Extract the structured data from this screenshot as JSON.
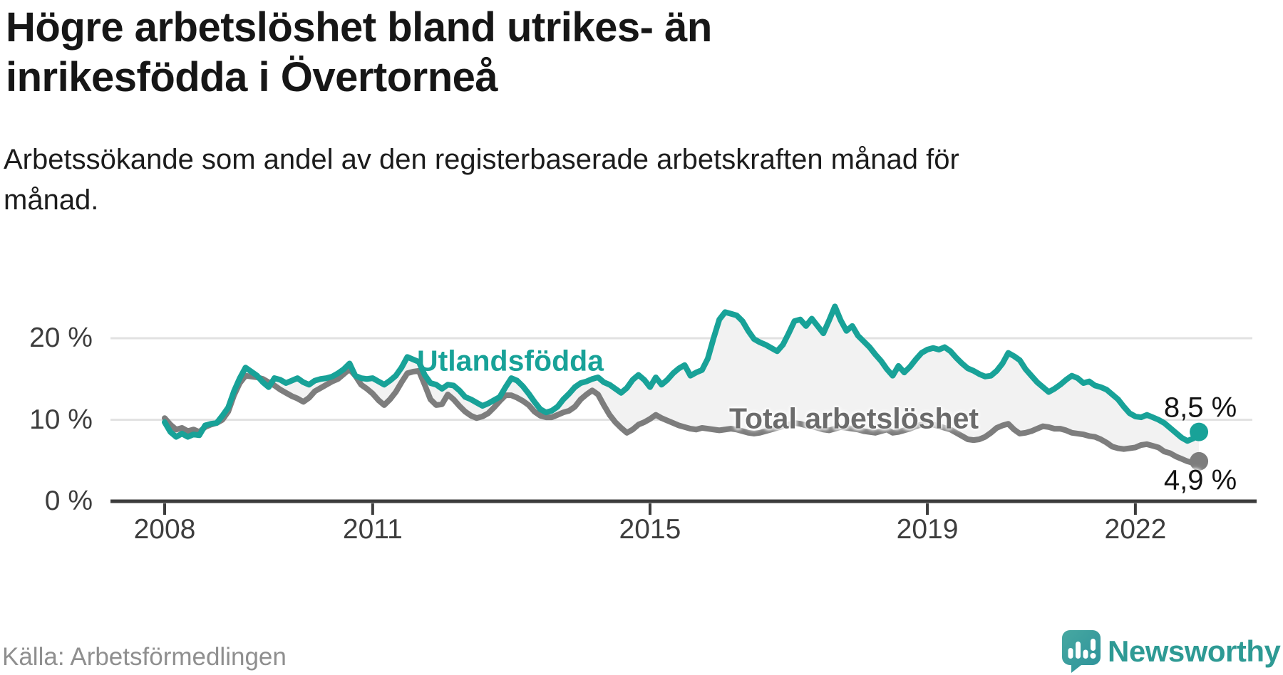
{
  "title_lines": [
    "Högre arbetslöshet bland utrikes- än",
    "inrikesfödda i Övertorneå"
  ],
  "subtitle_lines": [
    "Arbetssökande som andel av den registerbaserade arbetskraften månad för",
    "månad."
  ],
  "source": "Källa: Arbetsförmedlingen",
  "branding": {
    "name": "Newsworthy",
    "logo_icon": "speech-bubble-bar-chart",
    "color": "#2e9a94"
  },
  "chart_data": {
    "type": "line",
    "unit": "%",
    "frequency": "monthly",
    "start": "2008-01",
    "end": "2022-12",
    "x_ticks": [
      2008,
      2011,
      2015,
      2019,
      2022
    ],
    "y_ticks": [
      {
        "value": 0,
        "label": "0 %"
      },
      {
        "value": 10,
        "label": "10 %"
      },
      {
        "value": 20,
        "label": "20 %"
      }
    ],
    "ylim": [
      0,
      24
    ],
    "grid": "horizontal",
    "area_fill": "#f2f2f2",
    "series": [
      {
        "name": "Utlandsfödda",
        "color": "#18a298",
        "end_label": "8,5 %",
        "end_value": 8.5,
        "values": [
          9.7,
          8.5,
          7.9,
          8.3,
          7.9,
          8.2,
          8.1,
          9.3,
          9.5,
          9.6,
          10.5,
          11.5,
          13.5,
          15.1,
          16.4,
          15.9,
          15.4,
          14.6,
          14.0,
          15.1,
          14.9,
          14.5,
          14.8,
          15.1,
          14.6,
          14.3,
          14.8,
          15.0,
          15.1,
          15.3,
          15.7,
          16.2,
          16.9,
          15.4,
          15.1,
          15.0,
          15.1,
          14.7,
          14.3,
          14.8,
          15.4,
          16.4,
          17.7,
          17.4,
          17.1,
          15.5,
          14.5,
          14.3,
          13.8,
          14.3,
          14.2,
          13.6,
          12.8,
          12.5,
          12.1,
          11.7,
          12.0,
          12.4,
          12.8,
          14.0,
          15.1,
          14.8,
          14.1,
          13.2,
          12.2,
          11.3,
          10.9,
          11.1,
          11.6,
          12.5,
          13.2,
          14.0,
          14.5,
          14.7,
          15.0,
          15.2,
          14.6,
          14.3,
          13.8,
          13.3,
          13.9,
          14.9,
          15.5,
          14.9,
          14.0,
          15.2,
          14.3,
          14.9,
          15.7,
          16.3,
          16.7,
          15.4,
          15.8,
          16.1,
          17.5,
          20.0,
          22.3,
          23.2,
          23.0,
          22.8,
          22.1,
          20.9,
          19.9,
          19.5,
          19.2,
          18.8,
          18.4,
          19.2,
          20.6,
          22.1,
          22.3,
          21.5,
          22.4,
          21.5,
          20.6,
          22.2,
          23.9,
          22.2,
          20.9,
          21.5,
          20.3,
          19.6,
          18.9,
          18.0,
          17.2,
          16.2,
          15.4,
          16.6,
          15.8,
          16.5,
          17.4,
          18.2,
          18.6,
          18.8,
          18.6,
          18.9,
          18.4,
          17.6,
          16.9,
          16.3,
          16.0,
          15.6,
          15.3,
          15.4,
          16.0,
          16.9,
          18.2,
          17.8,
          17.3,
          16.2,
          15.4,
          14.6,
          14.0,
          13.4,
          13.8,
          14.3,
          14.9,
          15.4,
          15.1,
          14.5,
          14.7,
          14.2,
          14.0,
          13.7,
          13.1,
          12.5,
          11.6,
          10.8,
          10.4,
          10.3,
          10.6,
          10.3,
          10.0,
          9.6,
          9.0,
          8.4,
          7.8,
          7.4,
          7.7,
          8.5
        ]
      },
      {
        "name": "Total arbetslöshet",
        "color": "#7d7d7d",
        "end_label": "4,9 %",
        "end_value": 4.9,
        "values": [
          10.2,
          9.4,
          8.8,
          9.0,
          8.6,
          8.8,
          8.5,
          9.1,
          9.4,
          9.6,
          10.0,
          11.0,
          13.0,
          14.5,
          15.4,
          15.3,
          15.2,
          15.0,
          14.6,
          14.2,
          13.7,
          13.3,
          12.9,
          12.6,
          12.2,
          12.7,
          13.5,
          13.9,
          14.3,
          14.7,
          15.0,
          15.6,
          16.2,
          15.4,
          14.3,
          13.8,
          13.2,
          12.4,
          11.8,
          12.5,
          13.4,
          14.6,
          15.7,
          15.9,
          16.0,
          14.3,
          12.5,
          11.8,
          11.9,
          13.1,
          12.5,
          11.7,
          11.0,
          10.5,
          10.2,
          10.4,
          10.8,
          11.5,
          12.3,
          13.0,
          13.0,
          12.7,
          12.3,
          11.8,
          11.0,
          10.5,
          10.3,
          10.3,
          10.6,
          10.9,
          11.1,
          11.6,
          12.5,
          13.1,
          13.6,
          13.1,
          11.8,
          10.6,
          9.7,
          9.0,
          8.4,
          8.8,
          9.4,
          9.7,
          10.1,
          10.6,
          10.2,
          9.9,
          9.6,
          9.3,
          9.1,
          8.9,
          8.8,
          9.0,
          8.9,
          8.8,
          8.7,
          8.8,
          8.9,
          8.8,
          8.6,
          8.4,
          8.3,
          8.4,
          8.6,
          8.8,
          9.0,
          9.2,
          9.4,
          9.6,
          9.5,
          9.3,
          9.2,
          9.0,
          8.8,
          8.7,
          8.9,
          9.1,
          9.0,
          8.9,
          8.8,
          8.6,
          8.5,
          8.4,
          8.6,
          8.8,
          8.4,
          8.5,
          8.7,
          8.9,
          9.2,
          9.4,
          9.5,
          9.4,
          9.2,
          9.0,
          8.8,
          8.4,
          8.0,
          7.6,
          7.5,
          7.6,
          7.9,
          8.4,
          9.0,
          9.3,
          9.5,
          8.8,
          8.3,
          8.4,
          8.6,
          8.9,
          9.2,
          9.1,
          8.9,
          8.9,
          8.7,
          8.4,
          8.3,
          8.2,
          8.0,
          7.9,
          7.6,
          7.2,
          6.7,
          6.5,
          6.4,
          6.5,
          6.6,
          6.9,
          7.0,
          6.8,
          6.6,
          6.1,
          5.9,
          5.5,
          5.2,
          4.9,
          4.7,
          4.9
        ]
      }
    ]
  }
}
